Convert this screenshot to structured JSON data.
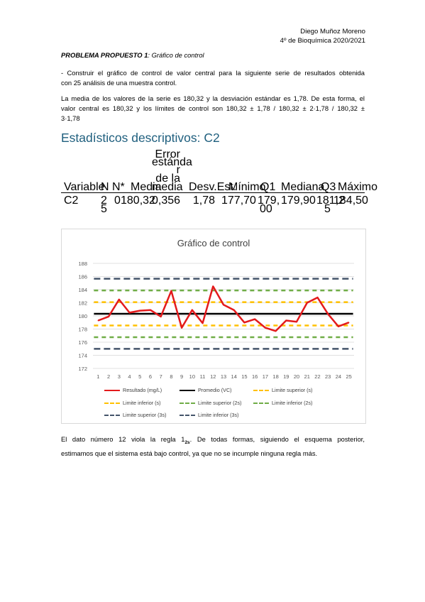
{
  "header": {
    "author": "Diego Muñoz Moreno",
    "course": "4º de Bioquímica 2020/2021"
  },
  "problem": {
    "label": "PROBLEMA PROPUESTO 1",
    "subtitle": ": Gráfico de control",
    "instruction_line1": "- Construir el gráfico de control de valor central para la siguiente serie de resultados obtenida",
    "instruction_line2": "con 25 análisis de una muestra control.",
    "stats_line1": "La media de los valores de la serie es 180,32 y la desviación estándar es 1,78. De esta forma, el",
    "stats_line2": "valor central es 180,32 y los límites de control son 180,32 ± 1,78 / 180,32 ± 2·1,78 / 180,32 ±",
    "stats_line3": "3·1,78"
  },
  "descriptive": {
    "title": "Estadísticos descriptivos: C2",
    "headers": {
      "variable": "Variable",
      "n": "N",
      "nstar": "N*",
      "media": "Media",
      "error": [
        "Error",
        "estánda",
        "r",
        "de la",
        "media"
      ],
      "desv": "Desv.Est.",
      "minimo": "Mínimo",
      "q1": "Q1",
      "mediana": "Mediana",
      "q3": "Q3",
      "maximo": "Máximo"
    },
    "row": {
      "variable": "C2",
      "n": [
        "2",
        "5"
      ],
      "nstar": "0",
      "media": "180,32",
      "error": "0,356",
      "desv": "1,78",
      "minimo": "177,70",
      "q1": [
        "179,",
        "00"
      ],
      "mediana": "179,90",
      "q3": [
        "181,2",
        "5"
      ],
      "maximo": "184,50"
    }
  },
  "chart_data": {
    "type": "line",
    "title": "Gráfico de control",
    "x": [
      1,
      2,
      3,
      4,
      5,
      6,
      7,
      8,
      9,
      10,
      11,
      12,
      13,
      14,
      15,
      16,
      17,
      18,
      19,
      20,
      21,
      22,
      23,
      24,
      25
    ],
    "ylim": [
      172,
      188
    ],
    "yticks": [
      172,
      174,
      176,
      178,
      180,
      182,
      184,
      186,
      188
    ],
    "grid": "horizontal",
    "legend_position": "bottom",
    "series": [
      {
        "name": "Resultado (mg/L)",
        "color": "#e31a1c",
        "style": "solid",
        "values": [
          179.3,
          179.9,
          182.5,
          180.5,
          180.8,
          180.9,
          179.9,
          183.8,
          178.2,
          180.9,
          178.9,
          184.5,
          181.7,
          180.9,
          179.0,
          179.5,
          178.2,
          177.7,
          179.3,
          179.1,
          182.0,
          182.8,
          180.3,
          178.4,
          179.0
        ]
      },
      {
        "name": "Promedio (VC)",
        "color": "#000000",
        "style": "solid",
        "value": 180.32
      },
      {
        "name": "Limite superior (s)",
        "color": "#ffc000",
        "style": "dashed",
        "value": 182.1
      },
      {
        "name": "Limite inferior (s)",
        "color": "#ffc000",
        "style": "dashed",
        "value": 178.54
      },
      {
        "name": "Limite superior (2s)",
        "color": "#70ad47",
        "style": "dashed",
        "value": 183.88
      },
      {
        "name": "Limite inferior (2s)",
        "color": "#70ad47",
        "style": "dashed",
        "value": 176.76
      },
      {
        "name": "Limite superior (3s)",
        "color": "#44546a",
        "style": "dashed",
        "value": 185.66
      },
      {
        "name": "Limite inferior (3s)",
        "color": "#44546a",
        "style": "dashed",
        "value": 174.98
      }
    ]
  },
  "conclusion": {
    "line1_a": "El dato número 12 viola la regla 1",
    "line1_sub": "2s",
    "line1_b": ". De todas formas, siguiendo el esquema posterior,",
    "line2": "estimamos que el sistema está bajo control, ya que no se incumple ninguna regla más."
  }
}
